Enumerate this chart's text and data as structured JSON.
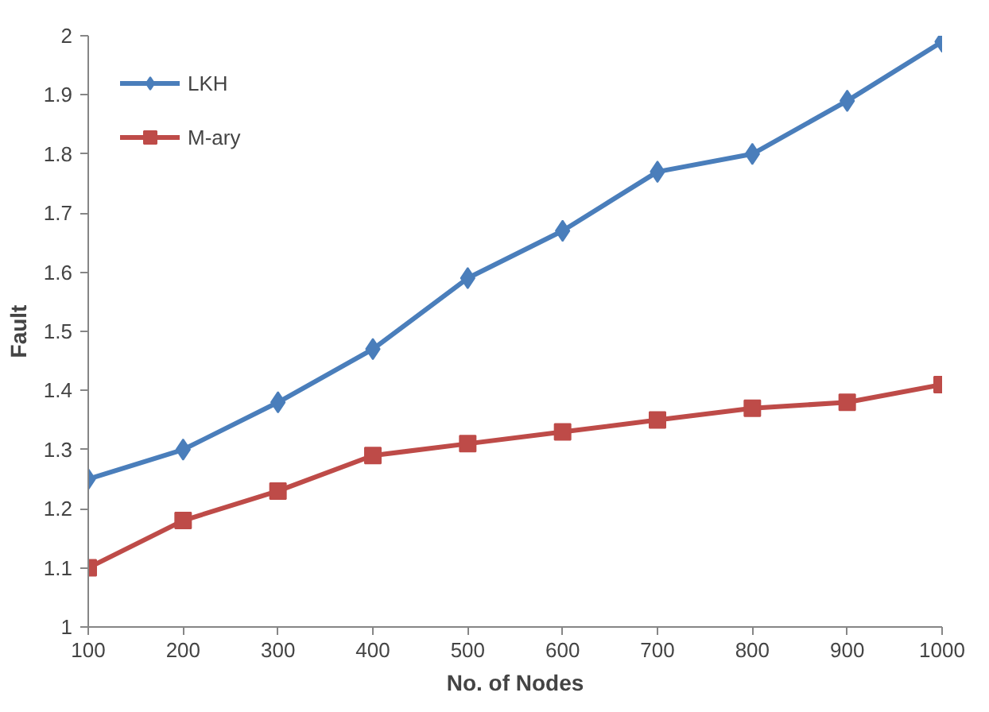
{
  "chart_data": {
    "type": "line",
    "xlabel": "No. of Nodes",
    "ylabel": "Fault",
    "x": [
      100,
      200,
      300,
      400,
      500,
      600,
      700,
      800,
      900,
      1000
    ],
    "series": [
      {
        "name": "LKH",
        "color": "#4a7ebb",
        "marker": "diamond",
        "values": [
          1.25,
          1.3,
          1.38,
          1.47,
          1.59,
          1.67,
          1.77,
          1.8,
          1.89,
          1.99
        ]
      },
      {
        "name": "M-ary",
        "color": "#be4b48",
        "marker": "square",
        "values": [
          1.1,
          1.18,
          1.23,
          1.29,
          1.31,
          1.33,
          1.35,
          1.37,
          1.38,
          1.41
        ]
      }
    ],
    "xlim": [
      100,
      1000
    ],
    "xticks": [
      100,
      200,
      300,
      400,
      500,
      600,
      700,
      800,
      900,
      1000
    ],
    "ylim": [
      1,
      2
    ],
    "yticks": [
      1,
      1.1,
      1.2,
      1.3,
      1.4,
      1.5,
      1.6,
      1.7,
      1.8,
      1.9,
      2
    ],
    "grid": false,
    "legend": "top left",
    "line_style": "solid"
  }
}
